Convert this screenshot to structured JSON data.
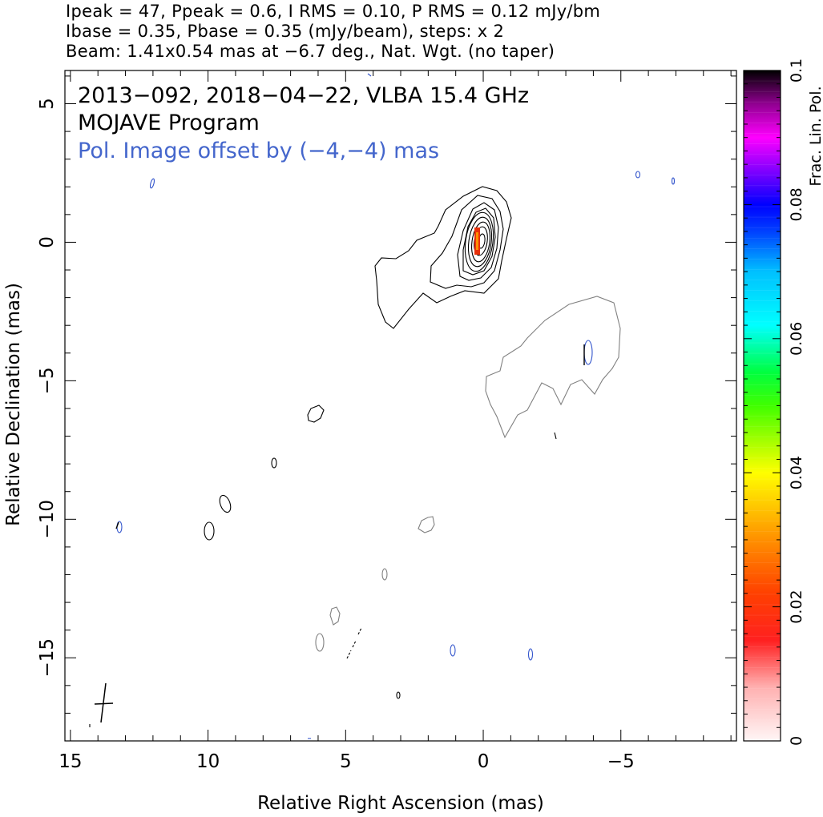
{
  "header": {
    "line1": "Ipeak = 47, Ppeak = 0.6, I RMS = 0.10, P RMS = 0.12 mJy/bm",
    "line2": "Ibase = 0.35, Pbase = 0.35 (mJy/beam), steps: x 2",
    "line3": "Beam: 1.41x0.54 mas at −6.7 deg., Nat. Wgt. (no taper)"
  },
  "chart_data": {
    "type": "contour",
    "title": "2013−092, 2018−04−22, VLBA 15.4 GHz",
    "subtitle": "MOJAVE Program",
    "annotation": "Pol. Image offset by (−4,−4) mas",
    "xlabel": "Relative Right Ascension (mas)",
    "ylabel": "Relative Declination (mas)",
    "xlim": [
      15.2,
      -9.2
    ],
    "ylim": [
      -18,
      6.2
    ],
    "x_ticks": [
      15,
      10,
      5,
      0,
      -5
    ],
    "x_tick_labels": [
      "15",
      "10",
      "5",
      "0",
      "−5"
    ],
    "y_ticks": [
      5,
      0,
      -5,
      -10,
      -15
    ],
    "y_tick_labels": [
      "5",
      "0",
      "−5",
      "−10",
      "−15"
    ],
    "colorbar": {
      "label": "Frac. Lin. Pol.",
      "range": [
        0,
        0.1
      ],
      "ticks": [
        0,
        0.02,
        0.04,
        0.06,
        0.08,
        0.1
      ],
      "tick_labels": [
        "0",
        "0.02",
        "0.04",
        "0.06",
        "0.08",
        "0.1"
      ]
    },
    "beam": {
      "major_mas": 1.41,
      "minor_mas": 0.54,
      "pa_deg": -6.7
    },
    "contour_colors": {
      "stokes_i": "#000000",
      "pol_offset": "#808080",
      "blue_noise": "#3355cc",
      "pol_peak": "#e8300a"
    }
  }
}
